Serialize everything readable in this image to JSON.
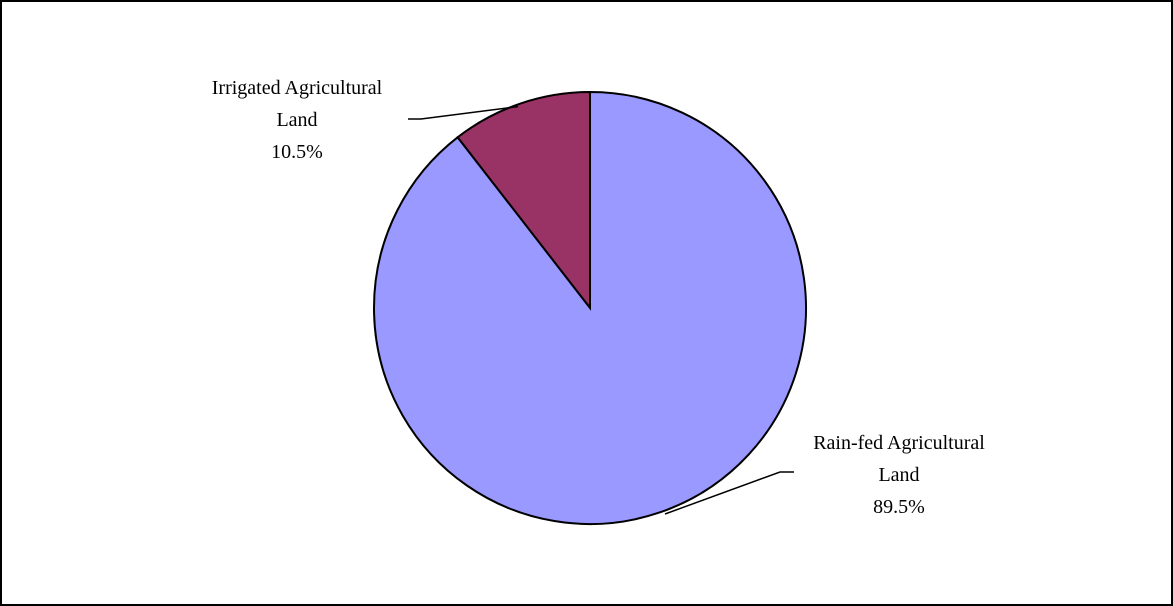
{
  "chart_data": {
    "type": "pie",
    "slices": [
      {
        "label_lines": [
          "Irrigated Agricultural",
          "Land"
        ],
        "value_label": "10.5%",
        "value": 10.5,
        "color": "#993366"
      },
      {
        "label_lines": [
          "Rain-fed Agricultural",
          "Land"
        ],
        "value_label": "89.5%",
        "value": 89.5,
        "color": "#9999ff"
      }
    ]
  }
}
